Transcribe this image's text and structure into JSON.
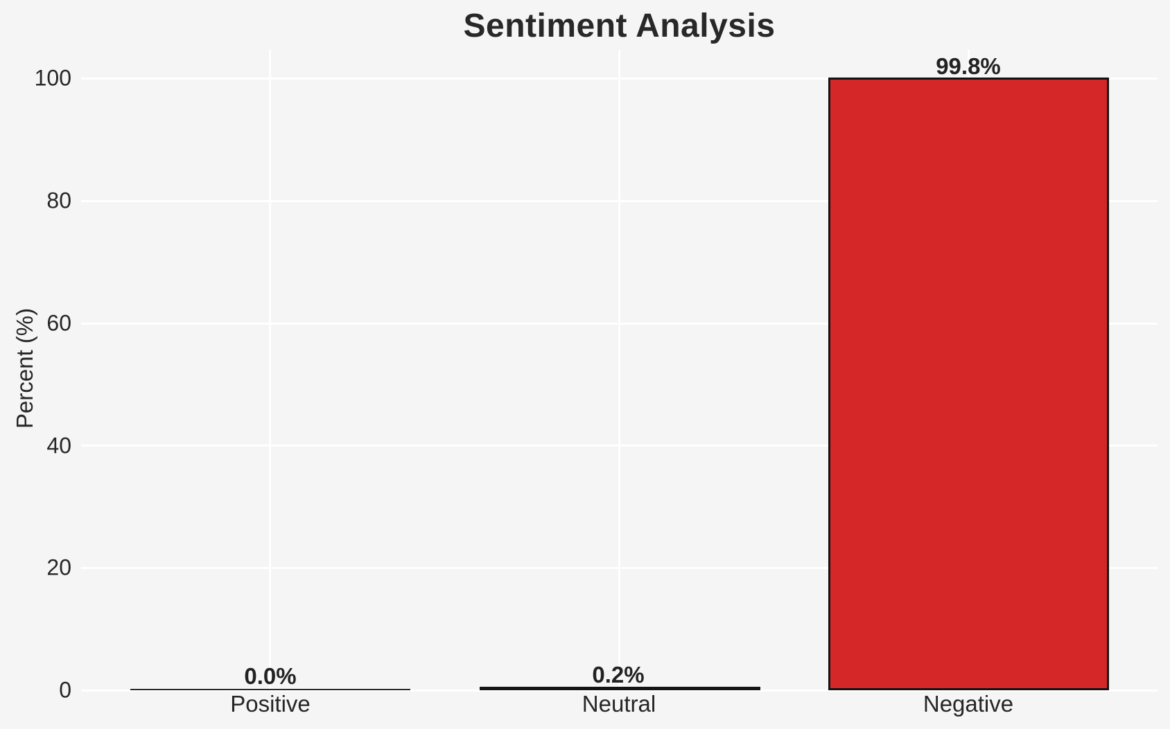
{
  "chart_data": {
    "type": "bar",
    "title": "Sentiment Analysis",
    "xlabel": "",
    "ylabel": "Percent (%)",
    "categories": [
      "Positive",
      "Neutral",
      "Negative"
    ],
    "values": [
      0.0,
      0.2,
      99.8
    ],
    "value_labels": [
      "0.0%",
      "0.2%",
      "99.8%"
    ],
    "yticks_top_to_bottom": [
      "100",
      "80",
      "60",
      "40",
      "20",
      "0"
    ],
    "ylim": [
      0,
      100
    ],
    "grid": true,
    "legend_position": "none",
    "colors": {
      "background": "#f5f5f6",
      "gridline": "#ffffff",
      "bar_negative_fill": "#d62728",
      "bar_edge": "#141414",
      "text": "#262626"
    }
  }
}
